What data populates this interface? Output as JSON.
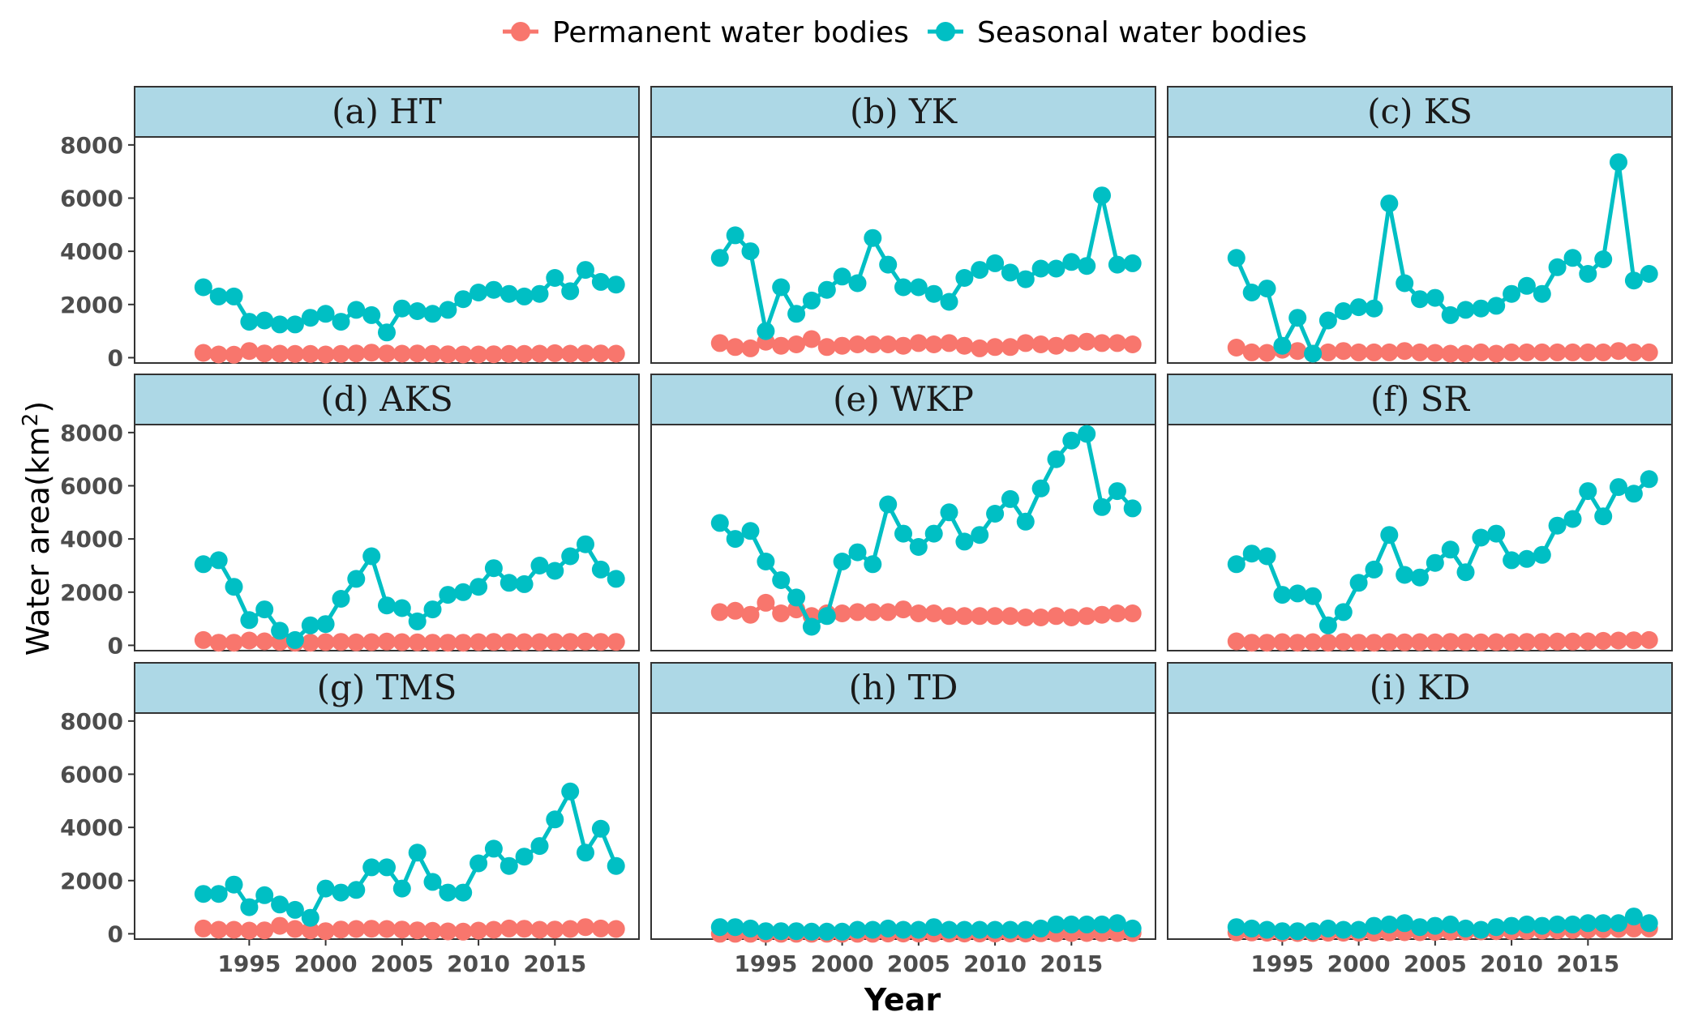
{
  "chart_data": {
    "type": "line",
    "layout": "facet-grid-3x3",
    "xlabel": "Year",
    "ylabel": "Water area(km",
    "ylabel_superscript": "2",
    "ylabel_close": ")",
    "x": [
      1992,
      1993,
      1994,
      1995,
      1996,
      1997,
      1998,
      1999,
      2000,
      2001,
      2002,
      2003,
      2004,
      2005,
      2006,
      2007,
      2008,
      2009,
      2010,
      2011,
      2012,
      2013,
      2014,
      2015,
      2016,
      2017,
      2018,
      2019
    ],
    "xlim": [
      1987.5,
      2020.5
    ],
    "ylim": [
      -200,
      8300
    ],
    "x_ticks": [
      1995,
      2000,
      2005,
      2010,
      2015
    ],
    "x_tick_labels": [
      "1995",
      "2000",
      "2005",
      "2010",
      "2015"
    ],
    "y_ticks": [
      0,
      2000,
      4000,
      6000,
      8000
    ],
    "y_tick_labels": [
      "0",
      "2000",
      "4000",
      "6000",
      "8000"
    ],
    "legend": {
      "position": "top",
      "entries": [
        {
          "name": "Permanent water bodies",
          "color": "#F8766D"
        },
        {
          "name": "Seasonal water bodies",
          "color": "#00BFC4"
        }
      ]
    },
    "panels": [
      {
        "title": "(a) HT",
        "permanent": [
          180,
          120,
          110,
          250,
          160,
          150,
          140,
          140,
          120,
          140,
          160,
          190,
          160,
          150,
          160,
          140,
          130,
          120,
          120,
          130,
          140,
          140,
          150,
          170,
          150,
          160,
          160,
          150
        ],
        "seasonal": [
          2650,
          2300,
          2300,
          1350,
          1400,
          1250,
          1250,
          1500,
          1650,
          1350,
          1800,
          1600,
          950,
          1850,
          1750,
          1650,
          1800,
          2200,
          2450,
          2550,
          2400,
          2300,
          2400,
          3000,
          2500,
          3300,
          2850,
          2750
        ]
      },
      {
        "title": "(b) YK",
        "permanent": [
          550,
          400,
          350,
          600,
          450,
          500,
          700,
          400,
          450,
          500,
          500,
          500,
          450,
          550,
          500,
          550,
          450,
          350,
          400,
          400,
          550,
          500,
          450,
          550,
          600,
          550,
          550,
          500
        ],
        "seasonal": [
          3750,
          4600,
          4000,
          1000,
          2650,
          1650,
          2150,
          2550,
          3050,
          2800,
          4500,
          3500,
          2650,
          2650,
          2400,
          2100,
          3000,
          3300,
          3550,
          3200,
          2950,
          3350,
          3350,
          3600,
          3450,
          6100,
          3500,
          3550
        ]
      },
      {
        "title": "(c) KS",
        "permanent": [
          380,
          200,
          180,
          300,
          250,
          150,
          200,
          250,
          200,
          200,
          200,
          250,
          200,
          180,
          150,
          150,
          200,
          150,
          200,
          200,
          200,
          200,
          200,
          200,
          200,
          250,
          200,
          200
        ],
        "seasonal": [
          3750,
          2450,
          2600,
          450,
          1500,
          150,
          1400,
          1750,
          1900,
          1850,
          5800,
          2800,
          2200,
          2250,
          1600,
          1800,
          1850,
          1950,
          2400,
          2700,
          2400,
          3400,
          3750,
          3150,
          3700,
          7350,
          2900,
          3150
        ]
      },
      {
        "title": "(d) AKS",
        "permanent": [
          200,
          100,
          100,
          180,
          150,
          130,
          100,
          100,
          120,
          130,
          110,
          120,
          140,
          120,
          110,
          100,
          100,
          100,
          120,
          130,
          120,
          120,
          120,
          130,
          130,
          140,
          130,
          130
        ],
        "seasonal": [
          3050,
          3200,
          2200,
          950,
          1350,
          550,
          200,
          750,
          800,
          1750,
          2500,
          3350,
          1500,
          1400,
          900,
          1350,
          1900,
          2000,
          2200,
          2900,
          2350,
          2300,
          3000,
          2800,
          3350,
          3800,
          2850,
          2500
        ]
      },
      {
        "title": "(e) WKP",
        "permanent": [
          1250,
          1300,
          1150,
          1600,
          1200,
          1350,
          1100,
          1200,
          1200,
          1250,
          1250,
          1250,
          1350,
          1200,
          1200,
          1100,
          1100,
          1100,
          1100,
          1100,
          1050,
          1050,
          1100,
          1050,
          1100,
          1150,
          1200,
          1200
        ],
        "seasonal": [
          4600,
          4000,
          4300,
          3150,
          2450,
          1800,
          700,
          1100,
          3150,
          3500,
          3050,
          5300,
          4200,
          3700,
          4200,
          5000,
          3900,
          4150,
          4950,
          5500,
          4650,
          5900,
          7000,
          7700,
          7950,
          5200,
          5800,
          5150
        ]
      },
      {
        "title": "(f) SR",
        "permanent": [
          150,
          100,
          100,
          120,
          100,
          120,
          100,
          130,
          100,
          100,
          120,
          110,
          120,
          110,
          130,
          120,
          110,
          120,
          120,
          130,
          130,
          140,
          140,
          150,
          170,
          180,
          190,
          200
        ],
        "seasonal": [
          3050,
          3450,
          3350,
          1900,
          1950,
          1850,
          750,
          1250,
          2350,
          2850,
          4150,
          2650,
          2550,
          3100,
          3600,
          2750,
          4050,
          4200,
          3200,
          3250,
          3400,
          4500,
          4750,
          5800,
          4850,
          5950,
          5700,
          6250
        ]
      },
      {
        "title": "(g) TMS",
        "permanent": [
          200,
          150,
          150,
          120,
          130,
          300,
          180,
          130,
          100,
          160,
          180,
          190,
          180,
          160,
          130,
          110,
          90,
          80,
          120,
          150,
          200,
          190,
          150,
          160,
          180,
          250,
          200,
          180
        ],
        "seasonal": [
          1500,
          1500,
          1850,
          1000,
          1450,
          1100,
          900,
          600,
          1700,
          1550,
          1650,
          2500,
          2500,
          1700,
          3050,
          1950,
          1550,
          1550,
          2650,
          3200,
          2550,
          2900,
          3300,
          4300,
          5350,
          3050,
          3950,
          2550
        ]
      },
      {
        "title": "(h) TD",
        "permanent": [
          0,
          0,
          0,
          0,
          0,
          0,
          0,
          0,
          0,
          0,
          0,
          10,
          10,
          10,
          10,
          10,
          10,
          10,
          10,
          10,
          10,
          20,
          20,
          30,
          30,
          30,
          30,
          30
        ],
        "seasonal": [
          250,
          250,
          200,
          100,
          100,
          100,
          80,
          80,
          80,
          150,
          150,
          200,
          150,
          150,
          250,
          150,
          150,
          150,
          150,
          150,
          150,
          200,
          350,
          350,
          350,
          350,
          400,
          200
        ]
      },
      {
        "title": "(i) KD",
        "permanent": [
          50,
          50,
          40,
          30,
          30,
          30,
          40,
          40,
          40,
          40,
          50,
          60,
          60,
          70,
          80,
          80,
          90,
          100,
          100,
          110,
          120,
          130,
          140,
          150,
          170,
          180,
          200,
          200
        ],
        "seasonal": [
          250,
          200,
          150,
          100,
          100,
          100,
          200,
          150,
          150,
          300,
          350,
          400,
          250,
          300,
          350,
          200,
          150,
          250,
          300,
          350,
          300,
          350,
          350,
          400,
          400,
          400,
          650,
          400
        ]
      }
    ]
  }
}
